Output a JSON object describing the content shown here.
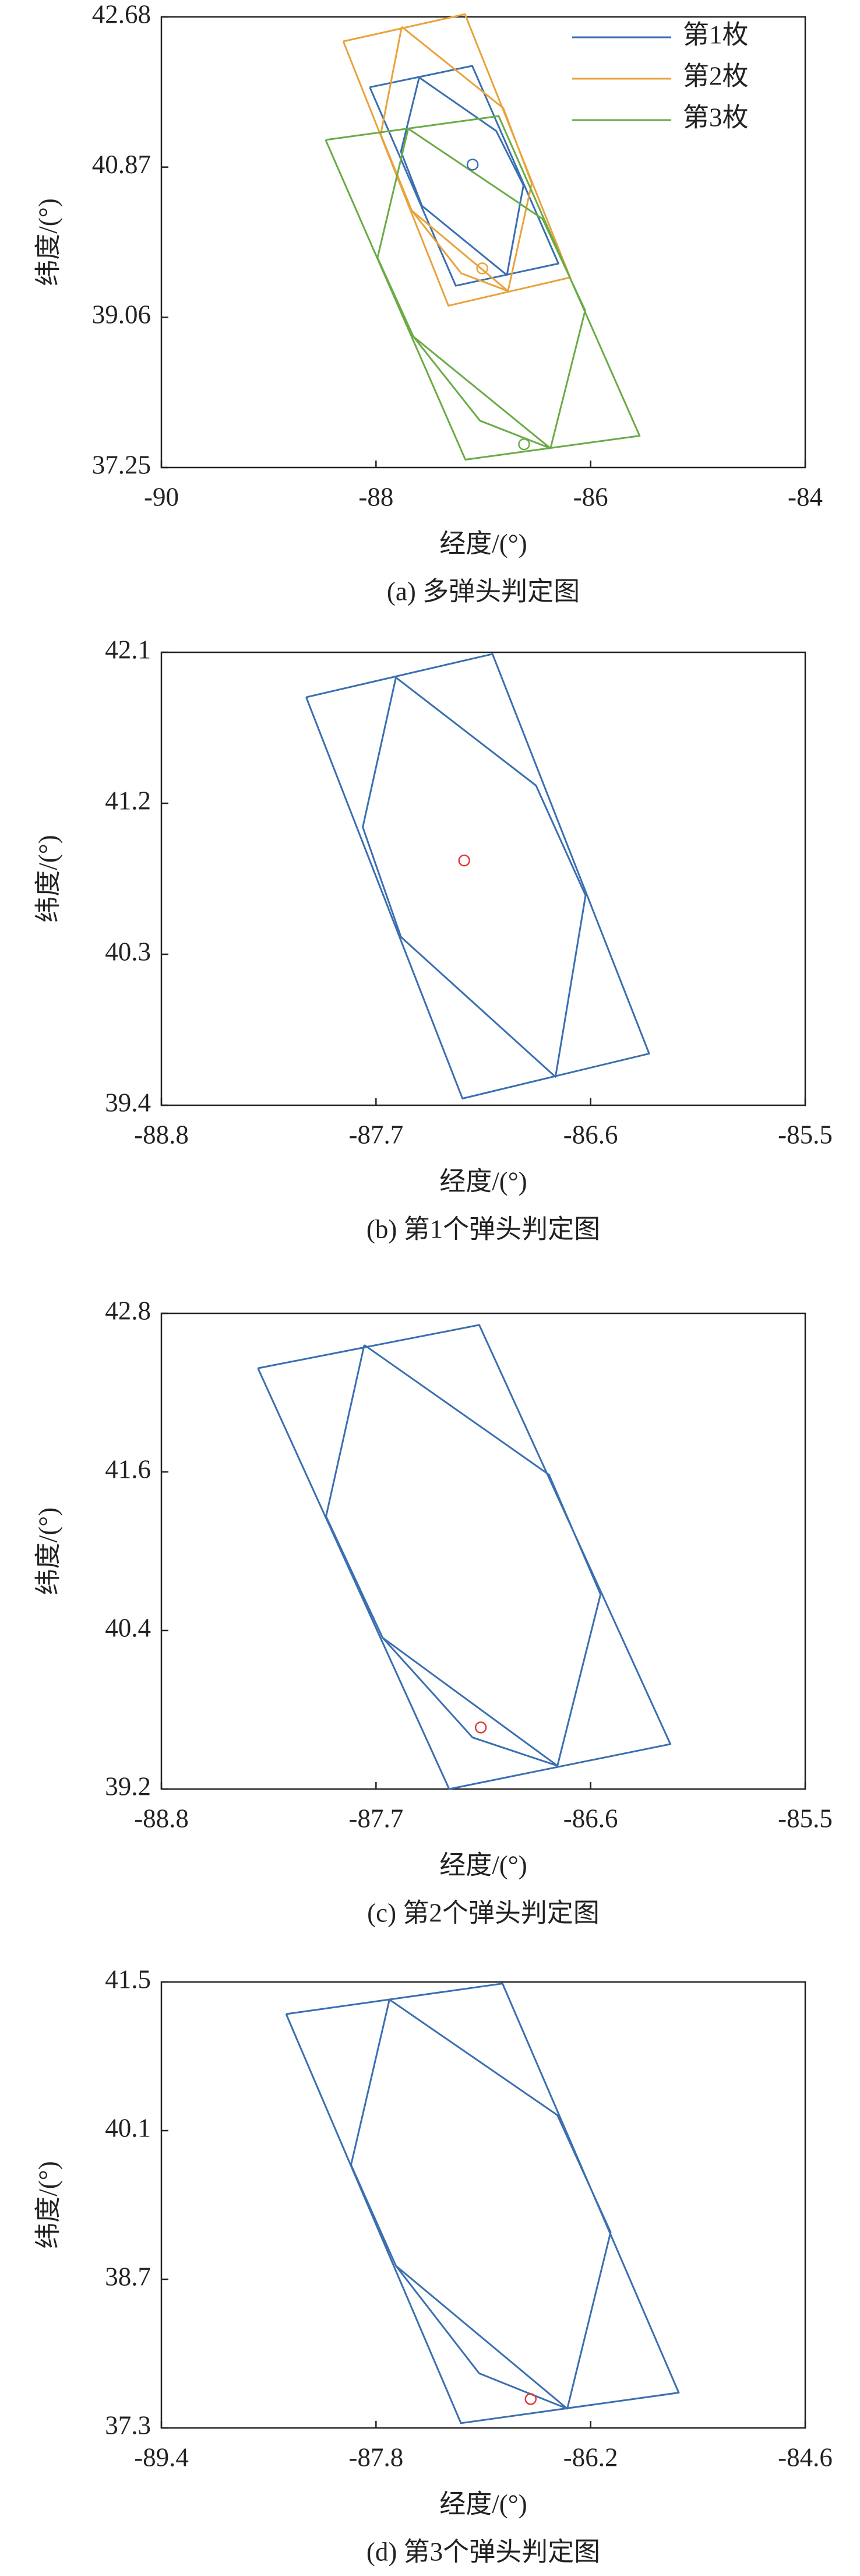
{
  "chart_data": [
    {
      "type": "line",
      "title": "(a) 多弹头判定图",
      "xlabel": "经度/(°)",
      "ylabel": "纬度/(°)",
      "xlim": [
        -90,
        -84
      ],
      "xticks": [
        -90,
        -88,
        -86,
        -84
      ],
      "ylim": [
        37.25,
        42.68
      ],
      "yticks": [
        37.25,
        39.06,
        40.87,
        42.68
      ],
      "legend": "upper right",
      "series": [
        {
          "name": "第1枚",
          "color": "#3a6fb0",
          "x": [
            -88.058,
            -87.103,
            -86.3,
            -87.257,
            -88.058,
            null,
            -87.598,
            -86.88,
            -86.626,
            -86.78,
            -87.572,
            -87.768,
            -87.598
          ],
          "values": [
            41.832,
            42.09,
            39.708,
            39.44,
            41.832,
            null,
            41.95,
            41.306,
            40.651,
            39.569,
            40.403,
            41.058,
            41.95
          ]
        },
        {
          "name": "第2枚",
          "color": "#e8a33d",
          "x": [
            -88.305,
            -87.171,
            -86.191,
            -87.325,
            -88.305,
            null,
            -87.76,
            -86.813,
            -86.549,
            -86.77,
            -87.666,
            -87.956,
            -87.76,
            null,
            -87.666,
            -87.205,
            -86.77
          ],
          "values": [
            42.385,
            42.712,
            39.54,
            39.2,
            42.385,
            null,
            42.561,
            41.579,
            40.673,
            39.376,
            40.345,
            41.264,
            42.561,
            null,
            40.345,
            39.59,
            39.376
          ]
        },
        {
          "name": "第3枚",
          "color": "#6aab46",
          "x": [
            -88.47,
            -86.857,
            -85.543,
            -87.167,
            -88.47,
            null,
            -87.7,
            -86.448,
            -86.051,
            -86.374,
            -87.651,
            -87.986,
            -87.7,
            null,
            -87.651,
            -87.031,
            -86.374
          ],
          "values": [
            41.198,
            41.485,
            37.632,
            37.345,
            41.198,
            null,
            41.334,
            40.246,
            39.143,
            37.481,
            38.826,
            39.778,
            41.334,
            null,
            38.826,
            37.814,
            37.481
          ]
        }
      ],
      "estimates": [
        {
          "color": "#3a6fb0",
          "x": -87.1,
          "y": 40.9
        },
        {
          "color": "#e8a33d",
          "x": -87.01,
          "y": 39.65
        },
        {
          "color": "#6aab46",
          "x": -86.62,
          "y": 37.53
        }
      ]
    },
    {
      "type": "line",
      "title": "(b) 第1个弹头判定图",
      "xlabel": "经度/(°)",
      "ylabel": "纬度/(°)",
      "xlim": [
        -88.8,
        -85.5
      ],
      "xticks": [
        -88.8,
        -87.7,
        -86.6,
        -85.5
      ],
      "ylim": [
        39.4,
        42.1
      ],
      "yticks": [
        39.4,
        40.3,
        41.2,
        42.1
      ],
      "series": [
        {
          "color": "#3a6fb0",
          "x": [
            -88.058,
            -87.103,
            -86.3,
            -87.257,
            -88.058,
            null,
            -87.598,
            -86.88,
            -86.626,
            -86.78,
            -87.572,
            -87.768,
            -87.598
          ],
          "values": [
            41.832,
            42.09,
            39.708,
            39.44,
            41.832,
            null,
            41.95,
            41.306,
            40.651,
            39.569,
            40.403,
            41.058,
            41.95
          ]
        }
      ],
      "estimates": [
        {
          "color": "#e0383a",
          "x": -87.248,
          "y": 40.859
        }
      ]
    },
    {
      "type": "line",
      "title": "(c) 第2个弹头判定图",
      "xlabel": "经度/(°)",
      "ylabel": "纬度/(°)",
      "xlim": [
        -88.8,
        -85.5
      ],
      "xticks": [
        -88.8,
        -87.7,
        -86.6,
        -85.5
      ],
      "ylim": [
        39.2,
        42.8
      ],
      "yticks": [
        39.2,
        40.4,
        41.6,
        42.8
      ],
      "series": [
        {
          "color": "#3a6fb0",
          "x": [
            -88.305,
            -87.171,
            -86.191,
            -87.325,
            -88.305,
            null,
            -87.76,
            -86.813,
            -86.549,
            -86.77,
            -87.666,
            -87.956,
            -87.76,
            null,
            -87.666,
            -87.205,
            -86.77
          ],
          "values": [
            42.385,
            42.712,
            39.54,
            39.2,
            42.385,
            null,
            42.561,
            41.579,
            40.673,
            39.376,
            40.345,
            41.264,
            42.561,
            null,
            40.345,
            39.59,
            39.376
          ]
        }
      ],
      "estimates": [
        {
          "color": "#e0383a",
          "x": -87.163,
          "y": 39.666
        }
      ]
    },
    {
      "type": "line",
      "title": "(d) 第3个弹头判定图",
      "xlabel": "经度/(°)",
      "ylabel": "纬度/(°)",
      "xlim": [
        -89.4,
        -84.6
      ],
      "xticks": [
        -89.4,
        -87.8,
        -86.2,
        -84.6
      ],
      "ylim": [
        37.3,
        41.5
      ],
      "yticks": [
        37.3,
        38.7,
        40.1,
        41.5
      ],
      "series": [
        {
          "color": "#3a6fb0",
          "x": [
            -88.47,
            -86.857,
            -85.543,
            -87.167,
            -88.47,
            null,
            -87.7,
            -86.448,
            -86.051,
            -86.374,
            -87.651,
            -87.986,
            -87.7,
            null,
            -87.651,
            -87.031,
            -86.374
          ],
          "values": [
            41.198,
            41.485,
            37.632,
            37.345,
            41.198,
            null,
            41.334,
            40.246,
            39.143,
            37.481,
            38.826,
            39.778,
            41.334,
            null,
            38.826,
            37.814,
            37.481
          ]
        }
      ],
      "estimates": [
        {
          "color": "#e0383a",
          "x": -86.647,
          "y": 37.572
        }
      ]
    }
  ]
}
